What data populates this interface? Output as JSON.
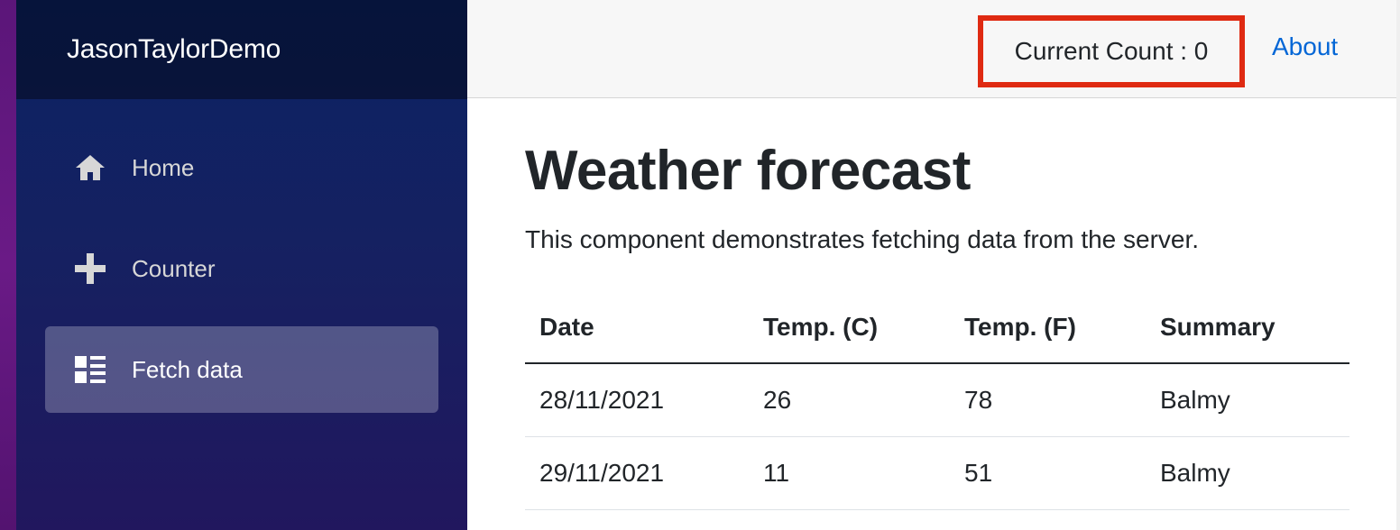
{
  "brand": {
    "title": "JasonTaylorDemo"
  },
  "sidebar": {
    "items": [
      {
        "label": "Home",
        "icon": "home-icon",
        "active": false
      },
      {
        "label": "Counter",
        "icon": "plus-icon",
        "active": false
      },
      {
        "label": "Fetch data",
        "icon": "list-rich-icon",
        "active": true
      }
    ]
  },
  "topbar": {
    "current_count_label": "Current Count : 0",
    "about_label": "About"
  },
  "page": {
    "title": "Weather forecast",
    "intro": "This component demonstrates fetching data from the server."
  },
  "forecast": {
    "columns": [
      "Date",
      "Temp. (C)",
      "Temp. (F)",
      "Summary"
    ],
    "rows": [
      [
        "28/11/2021",
        "26",
        "78",
        "Balmy"
      ],
      [
        "29/11/2021",
        "11",
        "51",
        "Balmy"
      ]
    ]
  },
  "colors": {
    "highlight_border": "#df2a12",
    "link": "#0366d6",
    "sidebar_top": "#0b2263",
    "sidebar_bottom": "#21175e"
  }
}
